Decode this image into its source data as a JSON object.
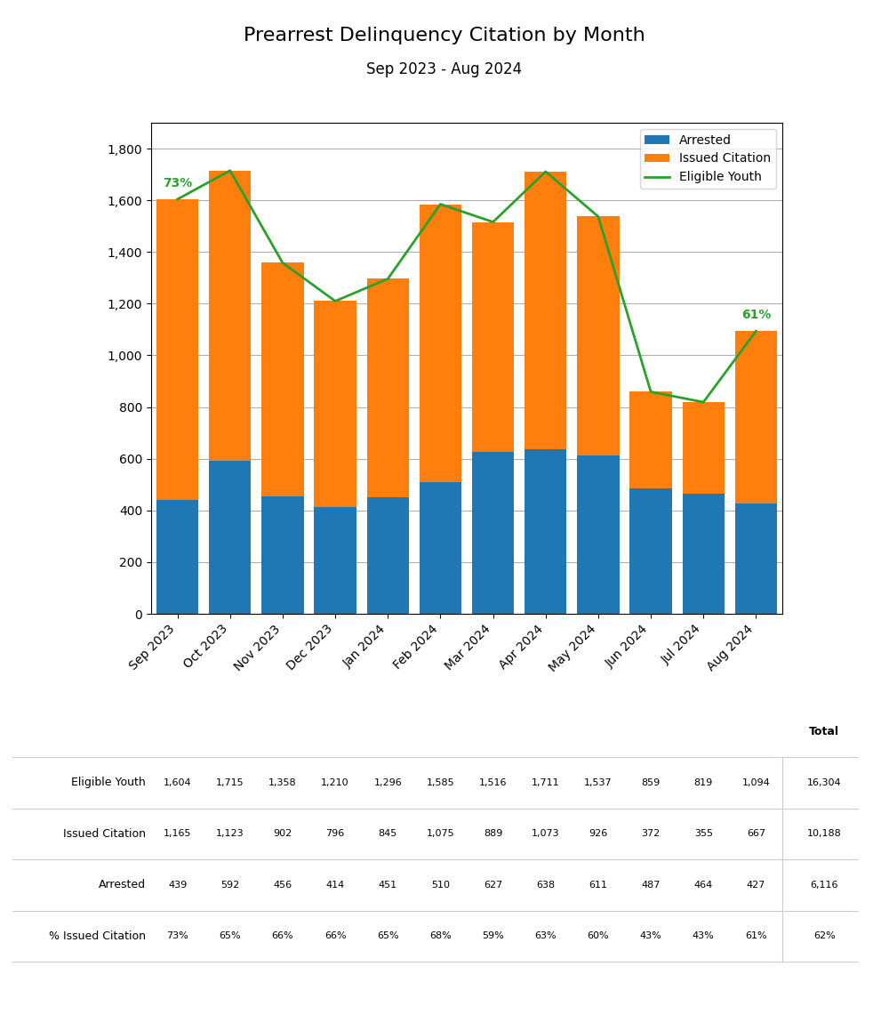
{
  "chart_data": {
    "type": "bar",
    "title": "Prearrest Delinquency Citation by Month",
    "subtitle": "Sep 2023 - Aug 2024",
    "categories": [
      "Sep 2023",
      "Oct 2023",
      "Nov 2023",
      "Dec 2023",
      "Jan 2024",
      "Feb 2024",
      "Mar 2024",
      "Apr 2024",
      "May 2024",
      "Jun 2024",
      "Jul 2024",
      "Aug 2024"
    ],
    "stacked": true,
    "grid": true,
    "legend": "upper right",
    "ylim": [
      0,
      1900
    ],
    "yticks": [
      0,
      200,
      400,
      600,
      800,
      {
        "value": 1000,
        "label": "1,000"
      },
      {
        "value": 1200,
        "label": "1,200"
      },
      {
        "value": 1400,
        "label": "1,400"
      },
      {
        "value": 1600,
        "label": "1,600"
      },
      {
        "value": 1800,
        "label": "1,800"
      }
    ],
    "series": [
      {
        "name": "Arrested",
        "type": "bar",
        "values": [
          439,
          592,
          456,
          414,
          451,
          510,
          627,
          638,
          611,
          487,
          464,
          427
        ]
      },
      {
        "name": "Issued Citation",
        "type": "bar",
        "values": [
          1165,
          1123,
          902,
          796,
          845,
          1075,
          889,
          1073,
          926,
          372,
          355,
          667
        ]
      },
      {
        "name": "Eligible Youth",
        "type": "line",
        "values": [
          1604,
          1715,
          1358,
          1210,
          1296,
          1585,
          1516,
          1711,
          1537,
          859,
          819,
          1094
        ]
      }
    ],
    "annotations": [
      {
        "text": "73%",
        "category": "Sep 2023",
        "series": "Eligible Youth"
      },
      {
        "text": "61%",
        "category": "Aug 2024",
        "series": "Eligible Youth"
      }
    ],
    "table": {
      "total_header": "Total",
      "rows": [
        {
          "label": "Eligible Youth",
          "values": [
            1604,
            1715,
            1358,
            1210,
            1296,
            1585,
            1516,
            1711,
            1537,
            859,
            819,
            1094
          ],
          "total": 16304
        },
        {
          "label": "Issued Citation",
          "values": [
            1165,
            1123,
            902,
            796,
            845,
            1075,
            889,
            1073,
            926,
            372,
            355,
            667
          ],
          "total": 10188
        },
        {
          "label": "Arrested",
          "values": [
            439,
            592,
            456,
            414,
            451,
            510,
            627,
            638,
            611,
            487,
            464,
            427
          ],
          "total": 6116
        },
        {
          "label": "% Issued Citation",
          "values": [
            73,
            65,
            66,
            66,
            65,
            68,
            59,
            63,
            60,
            43,
            43,
            61
          ],
          "value_labels": [
            "73%",
            "65%",
            "66%",
            "66%",
            "65%",
            "68%",
            "59%",
            "63%",
            "60%",
            "43%",
            "43%",
            "61%"
          ],
          "total": 62,
          "total_label": "62%"
        }
      ]
    }
  }
}
